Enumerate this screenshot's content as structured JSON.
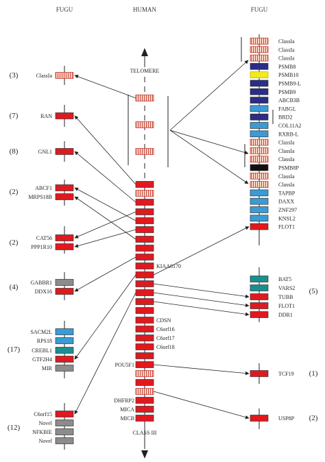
{
  "headers": {
    "left": "FUGU",
    "center": "HUMAN",
    "right": "FUGU"
  },
  "center_labels": {
    "telomere": "TELOMERE",
    "class3": "CLASS III"
  },
  "colors": {
    "red": "#e0191f",
    "hatch_stroke": "#c0281e",
    "hatch_fill": "#f6d6c6",
    "gray": "#8c8c8c",
    "navy": "#2b2e86",
    "lightblue": "#3a9bd5",
    "teal": "#1a8f8f",
    "yellow": "#f4ea1a",
    "black": "#111111",
    "line": "#222222"
  },
  "human_genes": [
    {
      "label": "",
      "style": "hatch"
    },
    {
      "label": "",
      "style": "hatch"
    },
    {
      "label": "",
      "style": "hatch"
    },
    {
      "label": "",
      "style": "red"
    },
    {
      "label": "",
      "style": "hatch"
    },
    {
      "label": "",
      "style": "red"
    },
    {
      "label": "",
      "style": "red"
    },
    {
      "label": "",
      "style": "red"
    },
    {
      "label": "",
      "style": "red"
    },
    {
      "label": "",
      "style": "red"
    },
    {
      "label": "",
      "style": "red"
    },
    {
      "label": "",
      "style": "red"
    },
    {
      "label": "KIAA0170",
      "style": "red"
    },
    {
      "label": "",
      "style": "red"
    },
    {
      "label": "",
      "style": "red"
    },
    {
      "label": "",
      "style": "red"
    },
    {
      "label": "",
      "style": "red"
    },
    {
      "label": "",
      "style": "red"
    },
    {
      "label": "CDSN",
      "style": "red"
    },
    {
      "label": "C6orf16",
      "style": "red"
    },
    {
      "label": "C6orf17",
      "style": "red"
    },
    {
      "label": "C6orf18",
      "style": "red"
    },
    {
      "label": "",
      "style": "red"
    },
    {
      "label": "POU5F1",
      "style": "red"
    },
    {
      "label": "",
      "style": "hatch"
    },
    {
      "label": "",
      "style": "red"
    },
    {
      "label": "",
      "style": "hatch"
    },
    {
      "label": "DHFRP2",
      "style": "red"
    },
    {
      "label": "MICA",
      "style": "red"
    },
    {
      "label": "MICB",
      "style": "red"
    }
  ],
  "left_groups": [
    {
      "count": "(3)",
      "genes": [
        {
          "label": "ClassIa",
          "style": "hatch"
        }
      ]
    },
    {
      "count": "(7)",
      "genes": [
        {
          "label": "RAN",
          "style": "red"
        }
      ]
    },
    {
      "count": "(8)",
      "genes": [
        {
          "label": "GNL1",
          "style": "red"
        }
      ]
    },
    {
      "count": "(2)",
      "genes": [
        {
          "label": "ABCF1",
          "style": "red"
        },
        {
          "label": "MRPS18B",
          "style": "red"
        }
      ]
    },
    {
      "count": "(2)",
      "genes": [
        {
          "label": "CAT56",
          "style": "red"
        },
        {
          "label": "PPP1R10",
          "style": "red"
        }
      ]
    },
    {
      "count": "(4)",
      "genes": [
        {
          "label": "GABBR1",
          "style": "gray"
        },
        {
          "label": "DDX16",
          "style": "red"
        }
      ]
    },
    {
      "count": "(17)",
      "genes": [
        {
          "label": "SACM2L",
          "style": "lightblue"
        },
        {
          "label": "RPS18",
          "style": "lightblue"
        },
        {
          "label": "CREBL1",
          "style": "teal"
        },
        {
          "label": "GTF2H4",
          "style": "red"
        },
        {
          "label": "MIR",
          "style": "gray"
        }
      ]
    },
    {
      "count": "(12)",
      "genes": [
        {
          "label": "C6orf15",
          "style": "red"
        },
        {
          "label": "Novel",
          "style": "gray"
        },
        {
          "label": "NFKBIE",
          "style": "gray"
        },
        {
          "label": "Novel",
          "style": "gray"
        }
      ]
    }
  ],
  "right_main_genes": [
    {
      "label": "ClassIa",
      "style": "hatch"
    },
    {
      "label": "ClassIa",
      "style": "hatch"
    },
    {
      "label": "ClassIa",
      "style": "hatch"
    },
    {
      "label": "PSMB8",
      "style": "navy"
    },
    {
      "label": "PSMB10",
      "style": "yellow"
    },
    {
      "label": "PSMB9-L",
      "style": "navy"
    },
    {
      "label": "PSMB9",
      "style": "navy"
    },
    {
      "label": "ABCB3B",
      "style": "navy"
    },
    {
      "label": "FABGL",
      "style": "lightblue"
    },
    {
      "label": "BRD2",
      "style": "navy"
    },
    {
      "label": "COL11A2",
      "style": "lightblue"
    },
    {
      "label": "RXRB-L",
      "style": "lightblue"
    },
    {
      "label": "ClassIa",
      "style": "hatch"
    },
    {
      "label": "ClassIa",
      "style": "hatch"
    },
    {
      "label": "ClassIa",
      "style": "hatch"
    },
    {
      "label": "PSMB8P",
      "style": "black"
    },
    {
      "label": "ClassIa",
      "style": "hatch"
    },
    {
      "label": "ClassIa",
      "style": "hatch"
    },
    {
      "label": "TAPBP",
      "style": "lightblue"
    },
    {
      "label": "DAXX",
      "style": "lightblue"
    },
    {
      "label": "ZNF297",
      "style": "lightblue"
    },
    {
      "label": "KNSL2",
      "style": "lightblue"
    },
    {
      "label": "FLOT1",
      "style": "red"
    }
  ],
  "right_groups": [
    {
      "count": "(5)",
      "genes": [
        {
          "label": "BAT5",
          "style": "teal"
        },
        {
          "label": "VARS2",
          "style": "teal"
        },
        {
          "label": "TUBB",
          "style": "red"
        },
        {
          "label": "FLOT1",
          "style": "red"
        },
        {
          "label": "DDR1",
          "style": "red"
        }
      ]
    },
    {
      "count": "(1)",
      "genes": [
        {
          "label": "TCF19",
          "style": "red"
        }
      ]
    },
    {
      "count": "(2)",
      "genes": [
        {
          "label": "USP8P",
          "style": "red"
        }
      ]
    }
  ],
  "connections": [
    {
      "from": "human",
      "from_index": 0,
      "to": "left",
      "to_group": 0,
      "to_gene": 0
    },
    {
      "from": "human",
      "from_index": 3,
      "to": "left",
      "to_group": 1,
      "to_gene": 0
    },
    {
      "from": "human",
      "from_index": 5,
      "to": "left",
      "to_group": 2,
      "to_gene": 0
    },
    {
      "from": "human",
      "from_index": 7,
      "to": "left",
      "to_group": 3,
      "to_gene": 0
    },
    {
      "from": "human",
      "from_index": 9,
      "to": "left",
      "to_group": 3,
      "to_gene": 1
    },
    {
      "from": "human",
      "from_index": 6,
      "to": "left",
      "to_group": 4,
      "to_gene": 0
    },
    {
      "from": "human",
      "from_index": 8,
      "to": "left",
      "to_group": 4,
      "to_gene": 1
    },
    {
      "from": "human",
      "from_index": 11,
      "to": "left",
      "to_group": 5,
      "to_gene": 1
    },
    {
      "from": "human",
      "from_index": 13,
      "to": "left",
      "to_group": 6,
      "to_gene": 3
    },
    {
      "from": "human",
      "from_index": 15,
      "to": "left",
      "to_group": 7,
      "to_gene": 0
    },
    {
      "from": "human",
      "from_index": 13,
      "to": "right_main",
      "to_gene": 22
    },
    {
      "from": "human",
      "from_index": 14,
      "to": "right",
      "to_group": 0,
      "to_gene": 2
    },
    {
      "from": "human",
      "from_index": 15,
      "to": "right",
      "to_group": 0,
      "to_gene": 3
    },
    {
      "from": "human",
      "from_index": 16,
      "to": "right",
      "to_group": 0,
      "to_gene": 4
    },
    {
      "from": "human",
      "from_index": 23,
      "to": "right",
      "to_group": 1,
      "to_gene": 0
    },
    {
      "from": "human",
      "from_index": 26,
      "to": "right",
      "to_group": 2,
      "to_gene": 0
    }
  ]
}
